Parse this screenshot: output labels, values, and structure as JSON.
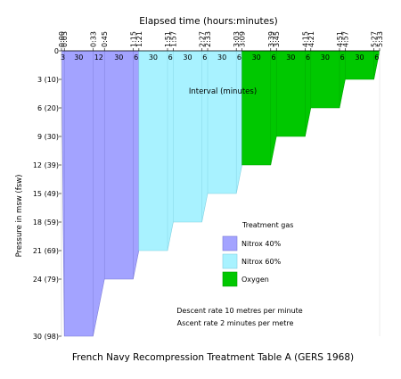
{
  "chart_data": {
    "type": "area",
    "title": "French Navy Recompression Treatment Table A (GERS 1968)",
    "xlabel": "Elapsed time (hours:minutes)",
    "ylabel": "Pressure in msw (fsw)",
    "xlim": [
      0,
      333
    ],
    "ylim_msw": [
      0,
      30
    ],
    "interval_label": "Interval (minutes)",
    "x_ticks": [
      {
        "minute": 0,
        "label": "0:00"
      },
      {
        "minute": 3,
        "label": "0:03"
      },
      {
        "minute": 33,
        "label": "0:33"
      },
      {
        "minute": 45,
        "label": "0:45"
      },
      {
        "minute": 75,
        "label": "1:15"
      },
      {
        "minute": 81,
        "label": "1:21"
      },
      {
        "minute": 111,
        "label": "1:51"
      },
      {
        "minute": 117,
        "label": "1:57"
      },
      {
        "minute": 147,
        "label": "2:27"
      },
      {
        "minute": 153,
        "label": "2:33"
      },
      {
        "minute": 183,
        "label": "3:03"
      },
      {
        "minute": 189,
        "label": "3:09"
      },
      {
        "minute": 219,
        "label": "3:39"
      },
      {
        "minute": 225,
        "label": "3:45"
      },
      {
        "minute": 255,
        "label": "4:15"
      },
      {
        "minute": 261,
        "label": "4:21"
      },
      {
        "minute": 291,
        "label": "4:51"
      },
      {
        "minute": 297,
        "label": "4:57"
      },
      {
        "minute": 327,
        "label": "5:27"
      },
      {
        "minute": 333,
        "label": "5:33"
      }
    ],
    "y_ticks": [
      {
        "msw": 0,
        "label": "0"
      },
      {
        "msw": 3,
        "label": "3 (10)"
      },
      {
        "msw": 6,
        "label": "6 (20)"
      },
      {
        "msw": 9,
        "label": "9 (30)"
      },
      {
        "msw": 12,
        "label": "12 (39)"
      },
      {
        "msw": 15,
        "label": "15 (49)"
      },
      {
        "msw": 18,
        "label": "18 (59)"
      },
      {
        "msw": 21,
        "label": "21 (69)"
      },
      {
        "msw": 24,
        "label": "24 (79)"
      },
      {
        "msw": 30,
        "label": "30 (98)"
      }
    ],
    "intervals": [
      {
        "mid": 1.5,
        "label": "3"
      },
      {
        "mid": 18,
        "label": "30"
      },
      {
        "mid": 39,
        "label": "12"
      },
      {
        "mid": 60,
        "label": "30"
      },
      {
        "mid": 78,
        "label": "6"
      },
      {
        "mid": 96,
        "label": "30"
      },
      {
        "mid": 114,
        "label": "6"
      },
      {
        "mid": 132,
        "label": "30"
      },
      {
        "mid": 150,
        "label": "6"
      },
      {
        "mid": 168,
        "label": "30"
      },
      {
        "mid": 186,
        "label": "6"
      },
      {
        "mid": 204,
        "label": "30"
      },
      {
        "mid": 222,
        "label": "6"
      },
      {
        "mid": 240,
        "label": "30"
      },
      {
        "mid": 258,
        "label": "6"
      },
      {
        "mid": 276,
        "label": "30"
      },
      {
        "mid": 294,
        "label": "6"
      },
      {
        "mid": 312,
        "label": "30"
      },
      {
        "mid": 330,
        "label": "6"
      }
    ],
    "series": [
      {
        "name": "Nitrox 40%",
        "color": "#a3a3ff",
        "border": "#7a7ad6",
        "profile": [
          [
            0,
            0
          ],
          [
            3,
            30
          ],
          [
            33,
            30
          ],
          [
            45,
            24
          ],
          [
            75,
            24
          ],
          [
            81,
            21
          ]
        ]
      },
      {
        "name": "Nitrox 60%",
        "color": "#a8f2ff",
        "border": "#7fcfe0",
        "profile": [
          [
            81,
            21
          ],
          [
            111,
            21
          ],
          [
            117,
            18
          ],
          [
            147,
            18
          ],
          [
            153,
            15
          ],
          [
            183,
            15
          ],
          [
            189,
            12
          ]
        ]
      },
      {
        "name": "Oxygen",
        "color": "#00c800",
        "border": "#00a000",
        "profile": [
          [
            189,
            12
          ],
          [
            219,
            12
          ],
          [
            225,
            9
          ],
          [
            255,
            9
          ],
          [
            261,
            6
          ],
          [
            291,
            6
          ],
          [
            297,
            3
          ],
          [
            327,
            3
          ],
          [
            333,
            0
          ]
        ]
      }
    ],
    "legend_title": "Treatment gas",
    "legend_position": "right",
    "notes": [
      "Descent rate 10 metres per minute",
      "Ascent rate 2 minutes per metre"
    ]
  }
}
